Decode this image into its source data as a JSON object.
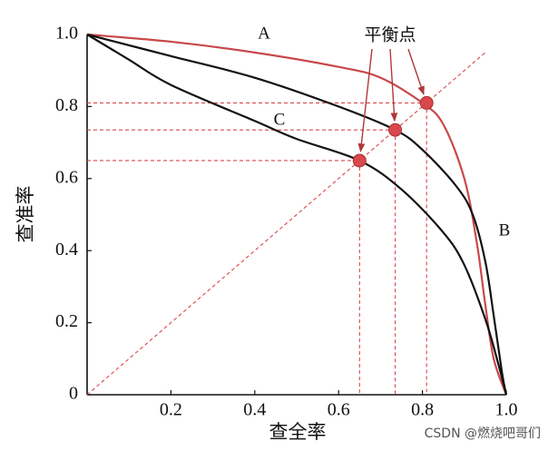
{
  "chart_data": {
    "type": "line",
    "xlabel": "查全率",
    "ylabel": "查准率",
    "xlim": [
      0,
      1
    ],
    "ylim": [
      0,
      1
    ],
    "xticks": [
      0.2,
      0.4,
      0.6,
      0.8,
      {
        "value": 1,
        "label": "1.0"
      }
    ],
    "yticks": [
      0,
      0.2,
      0.4,
      0.6,
      0.8,
      {
        "value": 1,
        "label": "1.0"
      }
    ],
    "series": [
      {
        "name": "A",
        "color": "#c9484a",
        "x": [
          0,
          0.2,
          0.4,
          0.6,
          0.7,
          0.8,
          0.85,
          0.9,
          0.93,
          0.95,
          0.97,
          1
        ],
        "values": [
          1,
          0.98,
          0.95,
          0.91,
          0.88,
          0.81,
          0.75,
          0.6,
          0.42,
          0.25,
          0.1,
          0
        ]
      },
      {
        "name": "B",
        "color": "#111111",
        "x": [
          0,
          0.2,
          0.4,
          0.6,
          0.735,
          0.8,
          0.88,
          0.92,
          0.95,
          0.97,
          0.99,
          1
        ],
        "values": [
          1,
          0.94,
          0.88,
          0.8,
          0.735,
          0.68,
          0.58,
          0.5,
          0.37,
          0.22,
          0.06,
          0
        ]
      },
      {
        "name": "C",
        "color": "#111111",
        "x": [
          0,
          0.1,
          0.2,
          0.4,
          0.5,
          0.65,
          0.75,
          0.85,
          0.9,
          0.95,
          0.98,
          1
        ],
        "values": [
          1,
          0.93,
          0.86,
          0.76,
          0.71,
          0.65,
          0.57,
          0.45,
          0.36,
          0.21,
          0.09,
          0
        ]
      }
    ],
    "break_even": {
      "x": [
        0.65,
        0.735,
        0.81
      ],
      "y": [
        0.65,
        0.735,
        0.81
      ],
      "color": "#d9484d"
    },
    "annotation": "平衡点",
    "watermark": "CSDN @燃烧吧哥们"
  }
}
